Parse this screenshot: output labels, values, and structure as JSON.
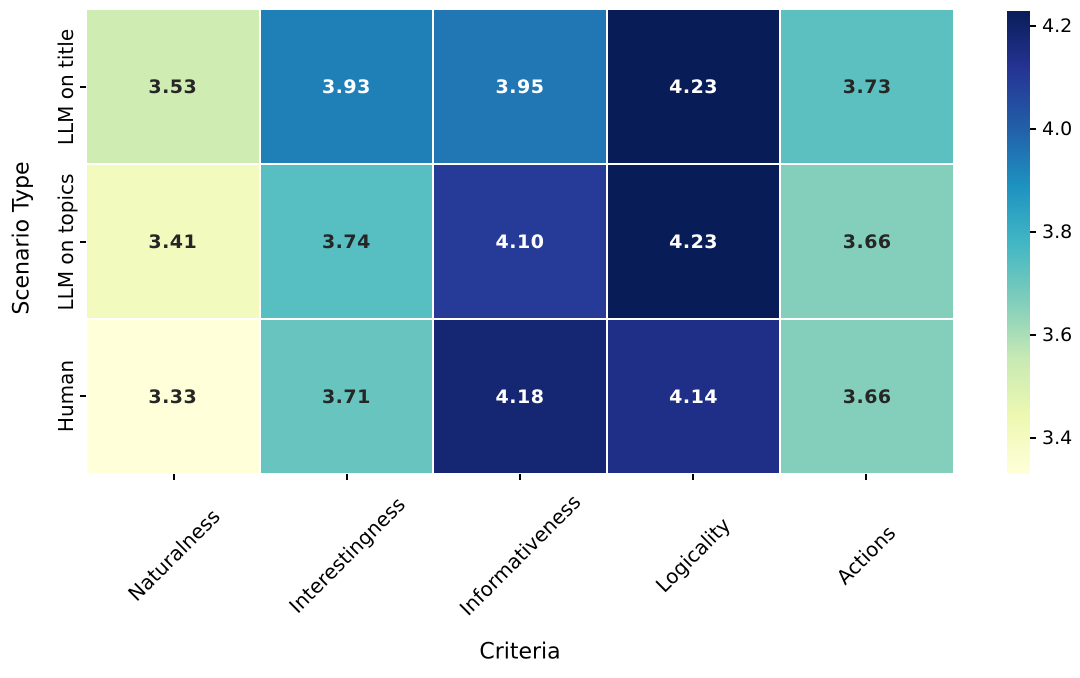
{
  "chart_data": {
    "type": "heatmap",
    "title": "",
    "xlabel": "Criteria",
    "ylabel": "Scenario Type",
    "rows": [
      "LLM on title",
      "LLM on topics",
      "Human"
    ],
    "columns": [
      "Naturalness",
      "Interestingness",
      "Informativeness",
      "Logicality",
      "Actions"
    ],
    "values": [
      [
        3.53,
        3.93,
        3.95,
        4.23,
        3.73
      ],
      [
        3.41,
        3.74,
        4.1,
        4.23,
        3.66
      ],
      [
        3.33,
        3.71,
        4.18,
        4.14,
        3.66
      ]
    ],
    "cell_labels": [
      [
        "3.53",
        "3.93",
        "3.95",
        "4.23",
        "3.73"
      ],
      [
        "3.41",
        "3.74",
        "4.10",
        "4.23",
        "3.66"
      ],
      [
        "3.33",
        "3.71",
        "4.18",
        "4.14",
        "3.66"
      ]
    ],
    "cell_colors": [
      [
        "#cfecb3",
        "#1f80b8",
        "#2077b4",
        "#081d58",
        "#5dc0c0"
      ],
      [
        "#f2fabd",
        "#57bec1",
        "#253b97",
        "#081d58",
        "#84cfbb"
      ],
      [
        "#ffffd9",
        "#68c4be",
        "#152773",
        "#1f2f88",
        "#84cfbb"
      ]
    ],
    "cell_text_colors": [
      [
        "#262626",
        "#ffffff",
        "#ffffff",
        "#ffffff",
        "#262626"
      ],
      [
        "#262626",
        "#262626",
        "#ffffff",
        "#ffffff",
        "#262626"
      ],
      [
        "#262626",
        "#262626",
        "#ffffff",
        "#ffffff",
        "#262626"
      ]
    ],
    "grid_line_color": "#ffffff",
    "legend_position": "right",
    "colorbar": {
      "vmin": 3.33,
      "vmax": 4.23,
      "tick_labels": [
        "4.2",
        "4.0",
        "3.8",
        "3.6",
        "3.4"
      ],
      "tick_values": [
        4.2,
        4.0,
        3.8,
        3.6,
        3.4
      ],
      "colormap": "YlGnBu",
      "gradient_stops_top_to_bottom": [
        {
          "pos": 0.0,
          "color": "#081d58"
        },
        {
          "pos": 0.125,
          "color": "#253494"
        },
        {
          "pos": 0.25,
          "color": "#225ea8"
        },
        {
          "pos": 0.375,
          "color": "#1d91c0"
        },
        {
          "pos": 0.5,
          "color": "#41b6c4"
        },
        {
          "pos": 0.625,
          "color": "#7fcdbb"
        },
        {
          "pos": 0.75,
          "color": "#c7e9b4"
        },
        {
          "pos": 0.875,
          "color": "#edf8b1"
        },
        {
          "pos": 1.0,
          "color": "#ffffd9"
        }
      ]
    }
  }
}
